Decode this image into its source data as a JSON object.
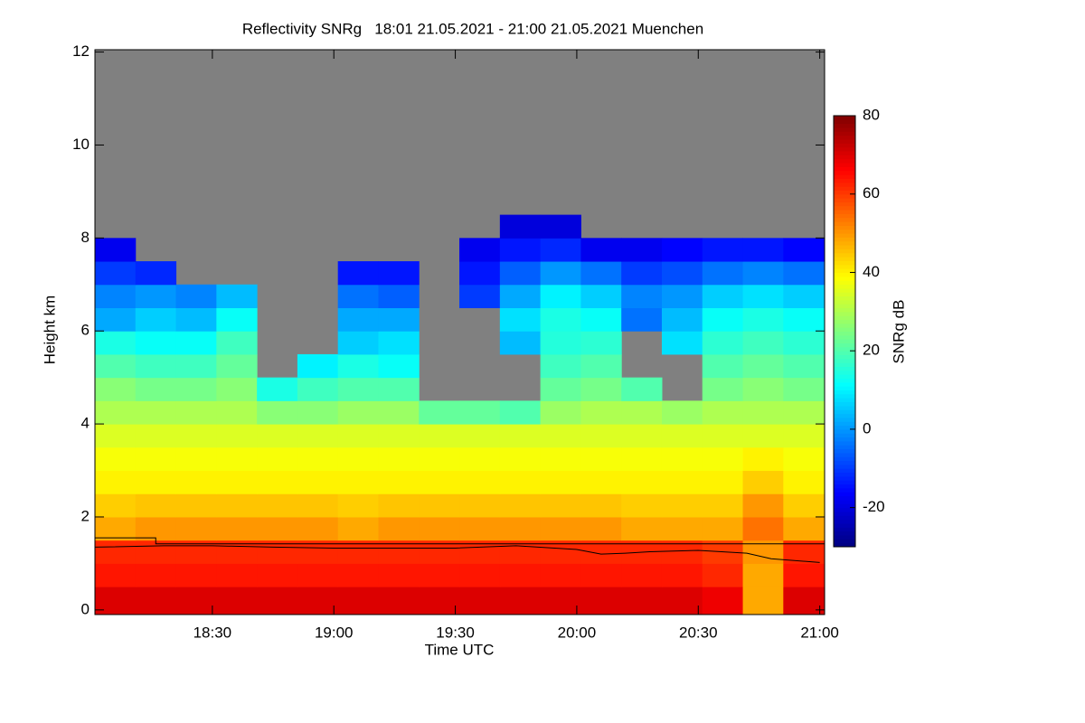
{
  "chart_data": {
    "type": "heatmap",
    "title": "Reflectivity SNRg   18:01 21.05.2021 - 21:00 21.05.2021 Muenchen",
    "xlabel": "Time UTC",
    "ylabel": "Height km",
    "colorbar_label": "SNRg dB",
    "colormap": "jet",
    "nan_color": "#808080",
    "xlim": [
      18.0167,
      21.02
    ],
    "xticks": [
      {
        "value": 18.5,
        "label": "18:30"
      },
      {
        "value": 19.0,
        "label": "19:00"
      },
      {
        "value": 19.5,
        "label": "19:30"
      },
      {
        "value": 20.0,
        "label": "20:00"
      },
      {
        "value": 20.5,
        "label": "20:30"
      },
      {
        "value": 21.0,
        "label": "21:00"
      }
    ],
    "ylim": [
      -0.1,
      12.05
    ],
    "yticks": [
      0,
      2,
      4,
      6,
      8,
      10,
      12
    ],
    "zlim": [
      -30,
      80
    ],
    "zticks": [
      -20,
      0,
      20,
      40,
      60,
      80
    ],
    "x": [
      18.1,
      18.2667,
      18.4333,
      18.6,
      18.7667,
      18.9333,
      19.1,
      19.2667,
      19.4333,
      19.6,
      19.7667,
      19.9333,
      20.1,
      20.2667,
      20.4333,
      20.6,
      20.7667,
      20.9333
    ],
    "y": [
      0.25,
      0.75,
      1.25,
      1.75,
      2.25,
      2.75,
      3.25,
      3.75,
      4.25,
      4.75,
      5.25,
      5.75,
      6.25,
      6.75,
      7.25,
      7.75,
      8.25,
      8.75,
      9.25,
      9.75,
      10.25,
      10.75,
      11.25,
      11.75
    ],
    "z": [
      [
        70,
        70,
        70,
        70,
        70,
        70,
        70,
        70,
        70,
        70,
        70,
        70,
        70,
        70,
        70,
        68,
        48,
        70
      ],
      [
        64,
        64,
        64,
        64,
        64,
        64,
        64,
        64,
        64,
        64,
        64,
        64,
        64,
        64,
        64,
        62,
        48,
        64
      ],
      [
        62,
        62,
        62,
        62,
        62,
        62,
        62,
        62,
        62,
        62,
        62,
        62,
        62,
        62,
        62,
        60,
        50,
        62
      ],
      [
        48,
        50,
        50,
        50,
        50,
        50,
        48,
        50,
        50,
        50,
        50,
        50,
        50,
        48,
        48,
        48,
        54,
        48
      ],
      [
        44,
        45,
        45,
        45,
        45,
        45,
        44,
        45,
        45,
        45,
        45,
        45,
        45,
        44,
        44,
        44,
        50,
        44
      ],
      [
        40,
        40,
        40,
        40,
        40,
        40,
        40,
        40,
        40,
        40,
        40,
        40,
        40,
        40,
        40,
        40,
        44,
        40
      ],
      [
        38,
        38,
        38,
        38,
        38,
        38,
        38,
        38,
        38,
        38,
        38,
        38,
        38,
        38,
        38,
        38,
        40,
        38
      ],
      [
        35,
        35,
        35,
        35,
        35,
        35,
        35,
        35,
        35,
        35,
        35,
        35,
        35,
        35,
        35,
        35,
        35,
        35
      ],
      [
        30,
        30,
        30,
        30,
        26,
        26,
        28,
        28,
        22,
        22,
        20,
        28,
        30,
        30,
        28,
        30,
        30,
        30
      ],
      [
        26,
        24,
        24,
        26,
        14,
        18,
        20,
        20,
        null,
        null,
        null,
        22,
        24,
        20,
        null,
        24,
        26,
        24
      ],
      [
        20,
        18,
        18,
        22,
        null,
        10,
        14,
        12,
        null,
        null,
        null,
        18,
        20,
        null,
        null,
        20,
        22,
        20
      ],
      [
        14,
        12,
        12,
        18,
        null,
        null,
        6,
        8,
        null,
        null,
        4,
        15,
        16,
        null,
        8,
        16,
        18,
        16
      ],
      [
        2,
        6,
        4,
        12,
        null,
        null,
        2,
        2,
        null,
        null,
        8,
        14,
        12,
        -4,
        4,
        12,
        14,
        12
      ],
      [
        -2,
        0,
        -2,
        4,
        null,
        null,
        -4,
        -6,
        null,
        -10,
        2,
        10,
        6,
        -2,
        0,
        6,
        8,
        6
      ],
      [
        -10,
        -12,
        null,
        null,
        null,
        null,
        -14,
        -14,
        null,
        -14,
        -6,
        0,
        -4,
        -10,
        -8,
        -4,
        -2,
        -4
      ],
      [
        -18,
        null,
        null,
        null,
        null,
        null,
        null,
        null,
        null,
        -18,
        -14,
        -12,
        -18,
        -18,
        -16,
        -14,
        -14,
        -16
      ],
      [
        null,
        null,
        null,
        null,
        null,
        null,
        null,
        null,
        null,
        null,
        -20,
        -20,
        null,
        null,
        null,
        null,
        null,
        null
      ],
      [
        null,
        null,
        null,
        null,
        null,
        null,
        null,
        null,
        null,
        null,
        null,
        null,
        null,
        null,
        null,
        null,
        null,
        null
      ],
      [
        null,
        null,
        null,
        null,
        null,
        null,
        null,
        null,
        null,
        null,
        null,
        null,
        null,
        null,
        null,
        null,
        null,
        null
      ],
      [
        null,
        null,
        null,
        null,
        null,
        null,
        null,
        null,
        null,
        null,
        null,
        null,
        null,
        null,
        null,
        null,
        null,
        null
      ],
      [
        null,
        null,
        null,
        null,
        null,
        null,
        null,
        null,
        null,
        null,
        null,
        null,
        null,
        null,
        null,
        null,
        null,
        null
      ],
      [
        null,
        null,
        null,
        null,
        null,
        null,
        null,
        null,
        null,
        null,
        null,
        null,
        null,
        null,
        null,
        null,
        null,
        null
      ],
      [
        null,
        null,
        null,
        null,
        null,
        null,
        null,
        null,
        null,
        null,
        null,
        null,
        null,
        null,
        null,
        null,
        null,
        null
      ],
      [
        null,
        null,
        null,
        null,
        null,
        null,
        null,
        null,
        null,
        null,
        null,
        null,
        null,
        null,
        null,
        null,
        null,
        null
      ]
    ],
    "series": [
      {
        "color": "#000000",
        "x": [
          18.0167,
          18.267,
          18.267,
          21.02
        ],
        "values": [
          1.55,
          1.55,
          1.42,
          1.42
        ]
      },
      {
        "color": "#000000",
        "x": [
          18.0167,
          18.3,
          18.5,
          18.75,
          19.0,
          19.5,
          19.75,
          20.0,
          20.1,
          20.2,
          20.3,
          20.5,
          20.7,
          20.8,
          21.0
        ],
        "values": [
          1.35,
          1.38,
          1.38,
          1.35,
          1.33,
          1.33,
          1.38,
          1.3,
          1.2,
          1.22,
          1.25,
          1.28,
          1.22,
          1.1,
          1.02
        ]
      }
    ]
  }
}
